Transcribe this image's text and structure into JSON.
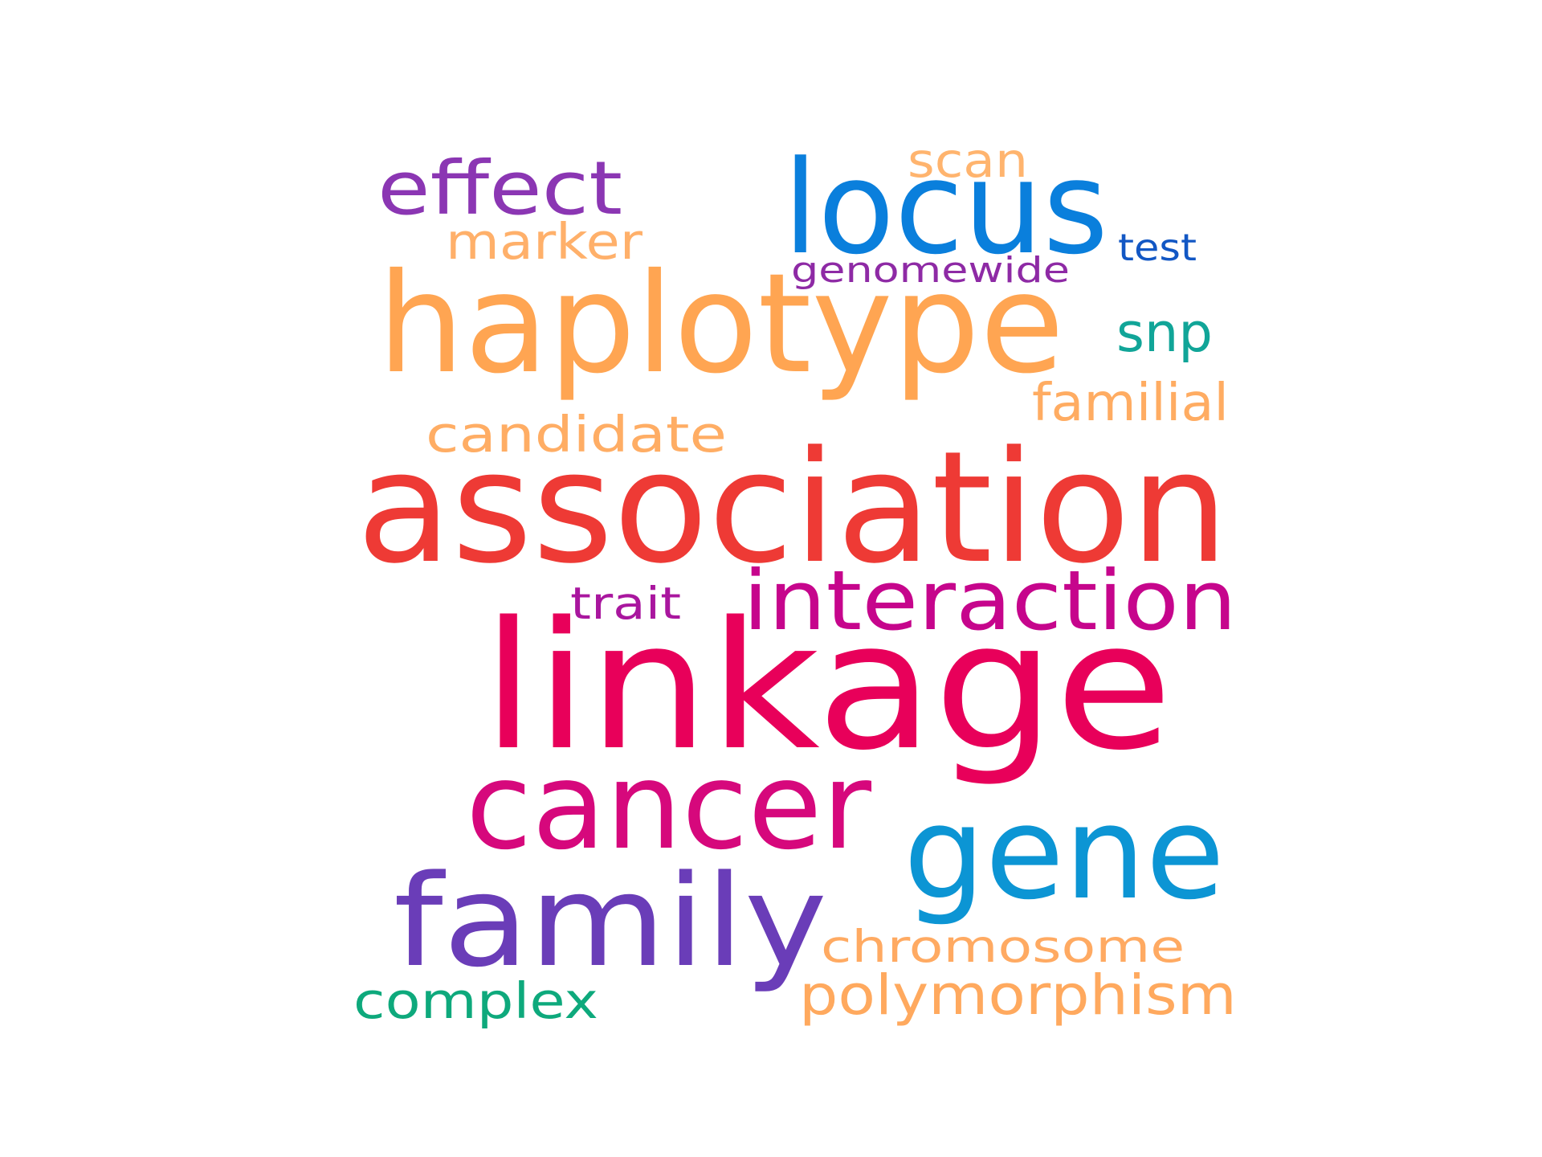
{
  "words": [
    {
      "id": "linkage",
      "text": "linkage",
      "color": "#e8005a"
    },
    {
      "id": "association",
      "text": "association",
      "color": "#ee3a35"
    },
    {
      "id": "haplotype",
      "text": "haplotype",
      "color": "#ffa552"
    },
    {
      "id": "family",
      "text": "family",
      "color": "#6a3db8"
    },
    {
      "id": "locus",
      "text": "locus",
      "color": "#0a7fdc"
    },
    {
      "id": "gene",
      "text": "gene",
      "color": "#0c95d4"
    },
    {
      "id": "cancer",
      "text": "cancer",
      "color": "#d6087c"
    },
    {
      "id": "interaction",
      "text": "interaction",
      "color": "#c6058c"
    },
    {
      "id": "effect",
      "text": "effect",
      "color": "#8b36b3"
    },
    {
      "id": "candidate",
      "text": "candidate",
      "color": "#ffad64"
    },
    {
      "id": "polymorphism",
      "text": "polymorphism",
      "color": "#ffa95e"
    },
    {
      "id": "chromosome",
      "text": "chromosome",
      "color": "#ffaa62"
    },
    {
      "id": "marker",
      "text": "marker",
      "color": "#ffb06a"
    },
    {
      "id": "familial",
      "text": "familial",
      "color": "#ffac62"
    },
    {
      "id": "complex",
      "text": "complex",
      "color": "#0ea97c"
    },
    {
      "id": "scan",
      "text": "scan",
      "color": "#ffb46e"
    },
    {
      "id": "snp",
      "text": "snp",
      "color": "#11a598"
    },
    {
      "id": "trait",
      "text": "trait",
      "color": "#a9169e"
    },
    {
      "id": "genomewide",
      "text": "genomewide",
      "color": "#8e2aa5"
    },
    {
      "id": "test",
      "text": "test",
      "color": "#1257c4"
    }
  ]
}
